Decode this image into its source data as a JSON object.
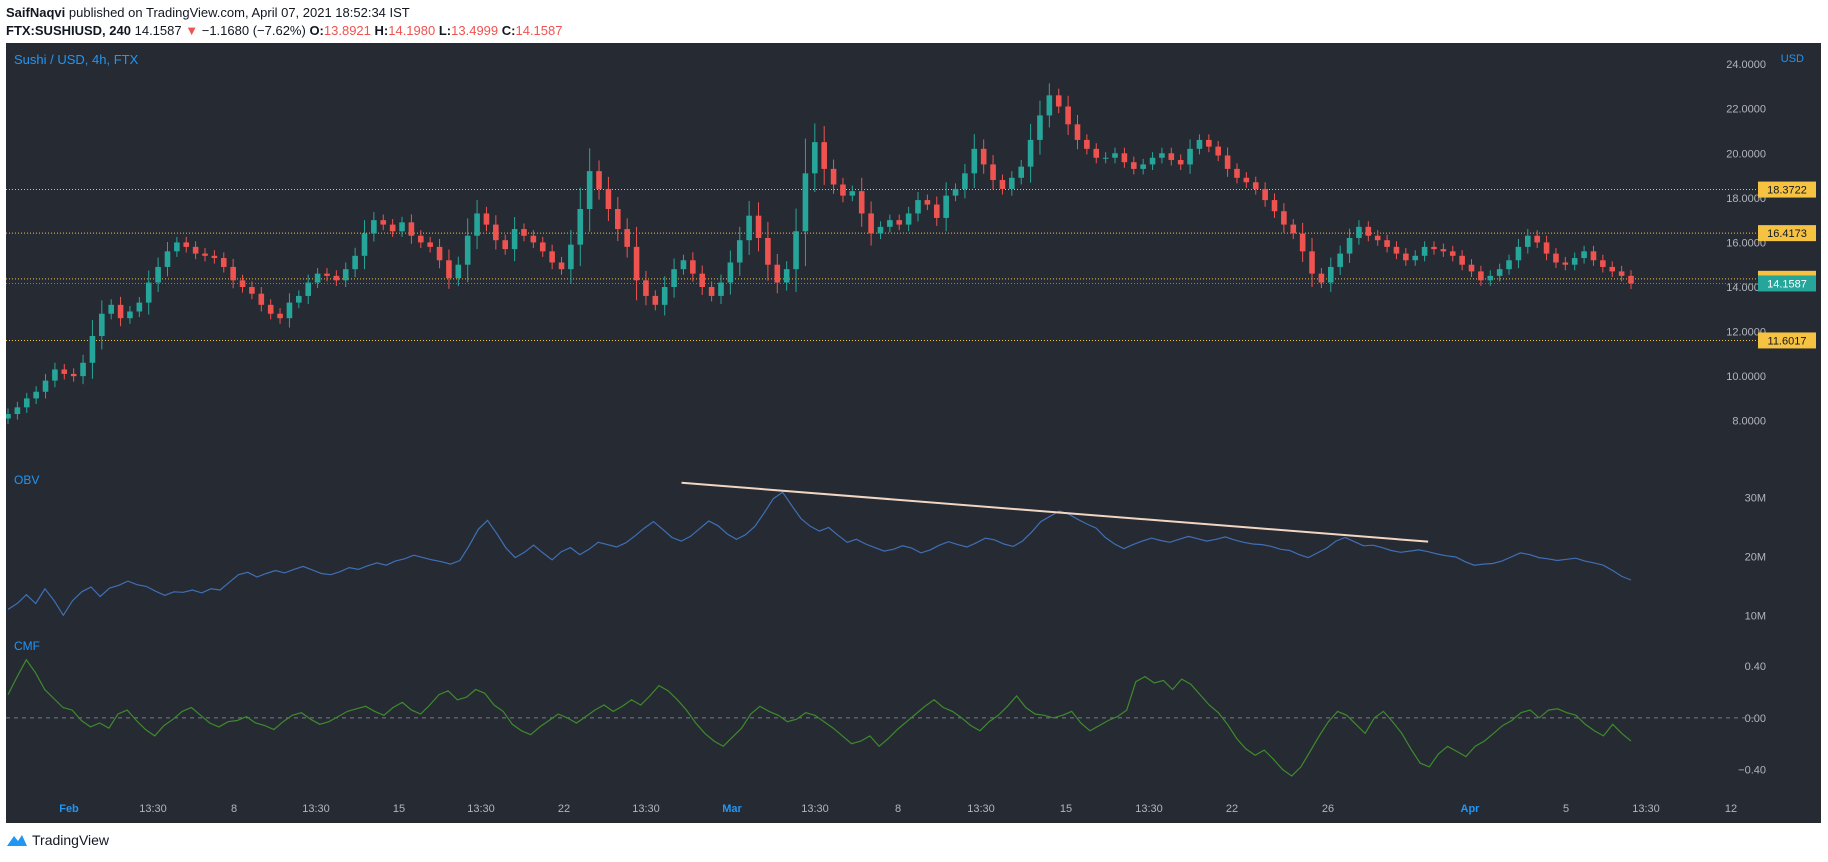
{
  "header": {
    "author": "SaifNaqvi",
    "published_text": "published on TradingView.com, April 07, 2021 18:52:34 IST",
    "symbol": "FTX:SUSHIUSD, 240",
    "last": "14.1587",
    "arrow": "▼",
    "change": "−1.1680 (−7.62%)",
    "o_label": "O:",
    "o_value": "13.8921",
    "h_label": "H:",
    "h_value": "14.1980",
    "l_label": "L:",
    "l_value": "13.4999",
    "c_label": "C:",
    "c_value": "14.1587"
  },
  "footer": {
    "brand": "TradingView"
  },
  "colors": {
    "background": "#262a33",
    "up": "#26a69a",
    "down": "#ef5350",
    "obv": "#3f6fb5",
    "cmf": "#3d8b2b",
    "trendline": "#f2d6c4",
    "level_label": "#f5c242",
    "last_label": "#26a69a",
    "axis_text": "#b2b5be",
    "accent_text": "#2196f3"
  },
  "chart_data": [
    {
      "type": "candlestick",
      "title": "Sushi / USD, 4h, FTX",
      "currency": "USD",
      "ylim": [
        7,
        24.5
      ],
      "yticks": [
        "24.0000",
        "22.0000",
        "20.0000",
        "18.0000",
        "16.0000",
        "14.0000",
        "12.0000",
        "10.0000",
        "8.0000"
      ],
      "ytick_values": [
        24,
        22,
        20,
        18,
        16,
        14,
        12,
        10,
        8
      ],
      "x_axis_labels": [
        "Feb",
        "13:30",
        "8",
        "13:30",
        "15",
        "13:30",
        "22",
        "13:30",
        "Mar",
        "13:30",
        "8",
        "13:30",
        "15",
        "13:30",
        "22",
        "26",
        "Apr",
        "5",
        "13:30",
        "12"
      ],
      "x_axis_bold": [
        "Feb",
        "Mar",
        "Apr"
      ],
      "horizontal_levels": [
        {
          "value": 18.3722,
          "label": "18.3722"
        },
        {
          "value": 16.4173,
          "label": "16.4173"
        },
        {
          "value": 14.3666,
          "label": "14.3666"
        },
        {
          "value": 11.6017,
          "label": "11.6017"
        }
      ],
      "last_price": {
        "value": 14.1587,
        "label": "14.1587"
      },
      "closes": [
        8.3,
        8.6,
        9.0,
        9.3,
        9.8,
        10.3,
        10.1,
        10.0,
        10.6,
        11.8,
        12.8,
        13.2,
        12.6,
        12.9,
        13.3,
        14.2,
        14.9,
        15.6,
        16.0,
        15.8,
        15.5,
        15.4,
        15.3,
        14.9,
        14.3,
        14.0,
        13.7,
        13.2,
        12.8,
        12.6,
        13.3,
        13.6,
        14.2,
        14.6,
        14.5,
        14.3,
        14.8,
        15.4,
        16.4,
        17.0,
        16.8,
        16.5,
        16.9,
        16.3,
        16.0,
        15.8,
        15.2,
        14.4,
        15.0,
        16.3,
        17.3,
        16.8,
        16.1,
        15.7,
        16.6,
        16.3,
        16.0,
        15.6,
        15.1,
        14.8,
        15.9,
        17.5,
        19.2,
        18.4,
        17.5,
        16.6,
        15.8,
        14.3,
        13.6,
        13.2,
        14.0,
        14.8,
        15.2,
        14.6,
        14.0,
        13.6,
        14.2,
        15.1,
        16.1,
        17.2,
        16.2,
        15.0,
        14.2,
        14.8,
        16.5,
        19.1,
        20.5,
        19.3,
        18.6,
        18.1,
        18.3,
        17.3,
        16.4,
        16.7,
        17.0,
        16.8,
        17.3,
        17.9,
        17.7,
        17.1,
        18.1,
        18.4,
        19.1,
        20.2,
        19.5,
        18.8,
        18.4,
        18.9,
        19.4,
        20.6,
        21.7,
        22.6,
        22.1,
        21.3,
        20.6,
        20.2,
        19.8,
        19.8,
        20.0,
        19.6,
        19.3,
        19.5,
        19.8,
        20.0,
        19.7,
        19.5,
        20.2,
        20.6,
        20.3,
        19.9,
        19.3,
        18.9,
        18.7,
        18.4,
        17.9,
        17.4,
        16.8,
        16.4,
        15.6,
        14.6,
        14.2,
        14.9,
        15.5,
        16.2,
        16.7,
        16.3,
        16.1,
        15.8,
        15.5,
        15.2,
        15.4,
        15.8,
        15.7,
        15.6,
        15.4,
        15.0,
        14.7,
        14.3,
        14.5,
        14.8,
        15.2,
        15.8,
        16.3,
        16.0,
        15.5,
        15.1,
        15.0,
        15.3,
        15.6,
        15.2,
        14.9,
        14.7,
        14.5,
        14.16
      ]
    },
    {
      "type": "line",
      "name": "OBV",
      "ylim": [
        7,
        35
      ],
      "yticks": [
        "30M",
        "20M",
        "10M"
      ],
      "ytick_values": [
        30,
        20,
        10
      ],
      "trendline": {
        "x": [
          0.415,
          0.875
        ],
        "y": [
          32.5,
          22.5
        ]
      },
      "values": [
        11.0,
        12.0,
        13.5,
        12.0,
        14.5,
        12.5,
        10.0,
        12.5,
        14.0,
        14.8,
        13.2,
        14.6,
        15.1,
        15.8,
        15.2,
        14.9,
        14.1,
        13.4,
        14.0,
        13.9,
        14.3,
        13.8,
        14.5,
        14.3,
        15.6,
        16.9,
        17.3,
        16.5,
        17.1,
        17.6,
        17.2,
        17.8,
        18.3,
        17.7,
        17.1,
        16.9,
        17.4,
        18.1,
        17.8,
        18.4,
        18.9,
        18.5,
        19.2,
        19.6,
        20.2,
        19.8,
        19.4,
        19.1,
        18.7,
        19.3,
        21.8,
        24.6,
        26.1,
        23.9,
        21.4,
        19.8,
        20.7,
        21.9,
        20.6,
        19.4,
        20.8,
        21.5,
        20.3,
        21.2,
        22.4,
        22.0,
        21.6,
        22.3,
        23.5,
        24.8,
        25.9,
        24.6,
        23.2,
        22.6,
        23.4,
        24.7,
        26.0,
        25.2,
        23.8,
        22.9,
        23.7,
        25.1,
        27.4,
        29.8,
        30.9,
        28.6,
        26.4,
        25.1,
        24.3,
        24.9,
        23.6,
        22.4,
        22.9,
        22.1,
        21.5,
        20.9,
        21.2,
        21.8,
        21.4,
        20.6,
        21.1,
        21.9,
        22.5,
        22.0,
        21.6,
        22.3,
        23.1,
        22.8,
        22.1,
        21.7,
        22.6,
        24.1,
        25.9,
        26.8,
        27.7,
        27.2,
        26.3,
        25.5,
        24.8,
        23.2,
        22.1,
        21.3,
        22.0,
        22.6,
        23.1,
        22.7,
        22.4,
        22.9,
        23.4,
        23.0,
        22.6,
        22.9,
        23.3,
        22.8,
        22.4,
        22.1,
        22.0,
        21.7,
        21.2,
        21.0,
        20.3,
        19.8,
        20.6,
        21.4,
        22.6,
        23.2,
        22.5,
        21.8,
        21.9,
        21.5,
        21.0,
        20.7,
        20.9,
        21.1,
        20.8,
        20.4,
        20.1,
        19.9,
        19.1,
        18.5,
        18.7,
        18.8,
        19.2,
        19.9,
        20.6,
        20.3,
        19.8,
        19.6,
        19.3,
        19.5,
        19.7,
        19.2,
        18.9,
        18.5,
        17.6,
        16.6,
        16.0
      ]
    },
    {
      "type": "line",
      "name": "CMF",
      "ylim": [
        -0.52,
        0.58
      ],
      "yticks": [
        "0.40",
        "0.00",
        "−0.40"
      ],
      "ytick_values": [
        0.4,
        0.0,
        -0.4
      ],
      "zero_line": 0,
      "values": [
        0.18,
        0.32,
        0.45,
        0.35,
        0.22,
        0.15,
        0.08,
        0.06,
        -0.02,
        -0.07,
        -0.04,
        -0.08,
        0.03,
        0.06,
        -0.02,
        -0.09,
        -0.14,
        -0.06,
        -0.01,
        0.05,
        0.08,
        0.02,
        -0.04,
        -0.07,
        -0.03,
        -0.02,
        0.01,
        -0.04,
        -0.06,
        -0.09,
        -0.03,
        0.02,
        0.04,
        -0.01,
        -0.05,
        -0.03,
        0.01,
        0.05,
        0.07,
        0.09,
        0.05,
        0.02,
        0.08,
        0.12,
        0.06,
        0.03,
        0.1,
        0.18,
        0.21,
        0.14,
        0.16,
        0.22,
        0.19,
        0.1,
        0.05,
        -0.05,
        -0.1,
        -0.13,
        -0.07,
        -0.02,
        0.03,
        0.0,
        -0.04,
        0.01,
        0.06,
        0.1,
        0.05,
        0.09,
        0.14,
        0.1,
        0.17,
        0.25,
        0.21,
        0.14,
        0.06,
        -0.04,
        -0.12,
        -0.18,
        -0.22,
        -0.15,
        -0.08,
        0.03,
        0.09,
        0.05,
        0.02,
        -0.03,
        -0.01,
        0.04,
        0.02,
        -0.03,
        -0.08,
        -0.14,
        -0.2,
        -0.18,
        -0.14,
        -0.22,
        -0.16,
        -0.09,
        -0.03,
        0.03,
        0.09,
        0.14,
        0.08,
        0.05,
        0.0,
        -0.06,
        -0.1,
        -0.03,
        0.02,
        0.09,
        0.17,
        0.08,
        0.03,
        0.02,
        0.0,
        0.02,
        0.05,
        -0.04,
        -0.1,
        -0.06,
        -0.02,
        0.01,
        0.06,
        0.28,
        0.32,
        0.27,
        0.29,
        0.22,
        0.3,
        0.26,
        0.18,
        0.1,
        0.04,
        -0.05,
        -0.16,
        -0.24,
        -0.29,
        -0.25,
        -0.32,
        -0.4,
        -0.45,
        -0.38,
        -0.26,
        -0.14,
        -0.03,
        0.05,
        0.02,
        -0.05,
        -0.12,
        0.0,
        0.05,
        -0.03,
        -0.12,
        -0.24,
        -0.35,
        -0.38,
        -0.28,
        -0.22,
        -0.26,
        -0.3,
        -0.22,
        -0.18,
        -0.12,
        -0.06,
        -0.02,
        0.04,
        0.06,
        0.0,
        0.06,
        0.07,
        0.04,
        0.02,
        -0.05,
        -0.1,
        -0.14,
        -0.05,
        -0.12,
        -0.18
      ]
    }
  ]
}
